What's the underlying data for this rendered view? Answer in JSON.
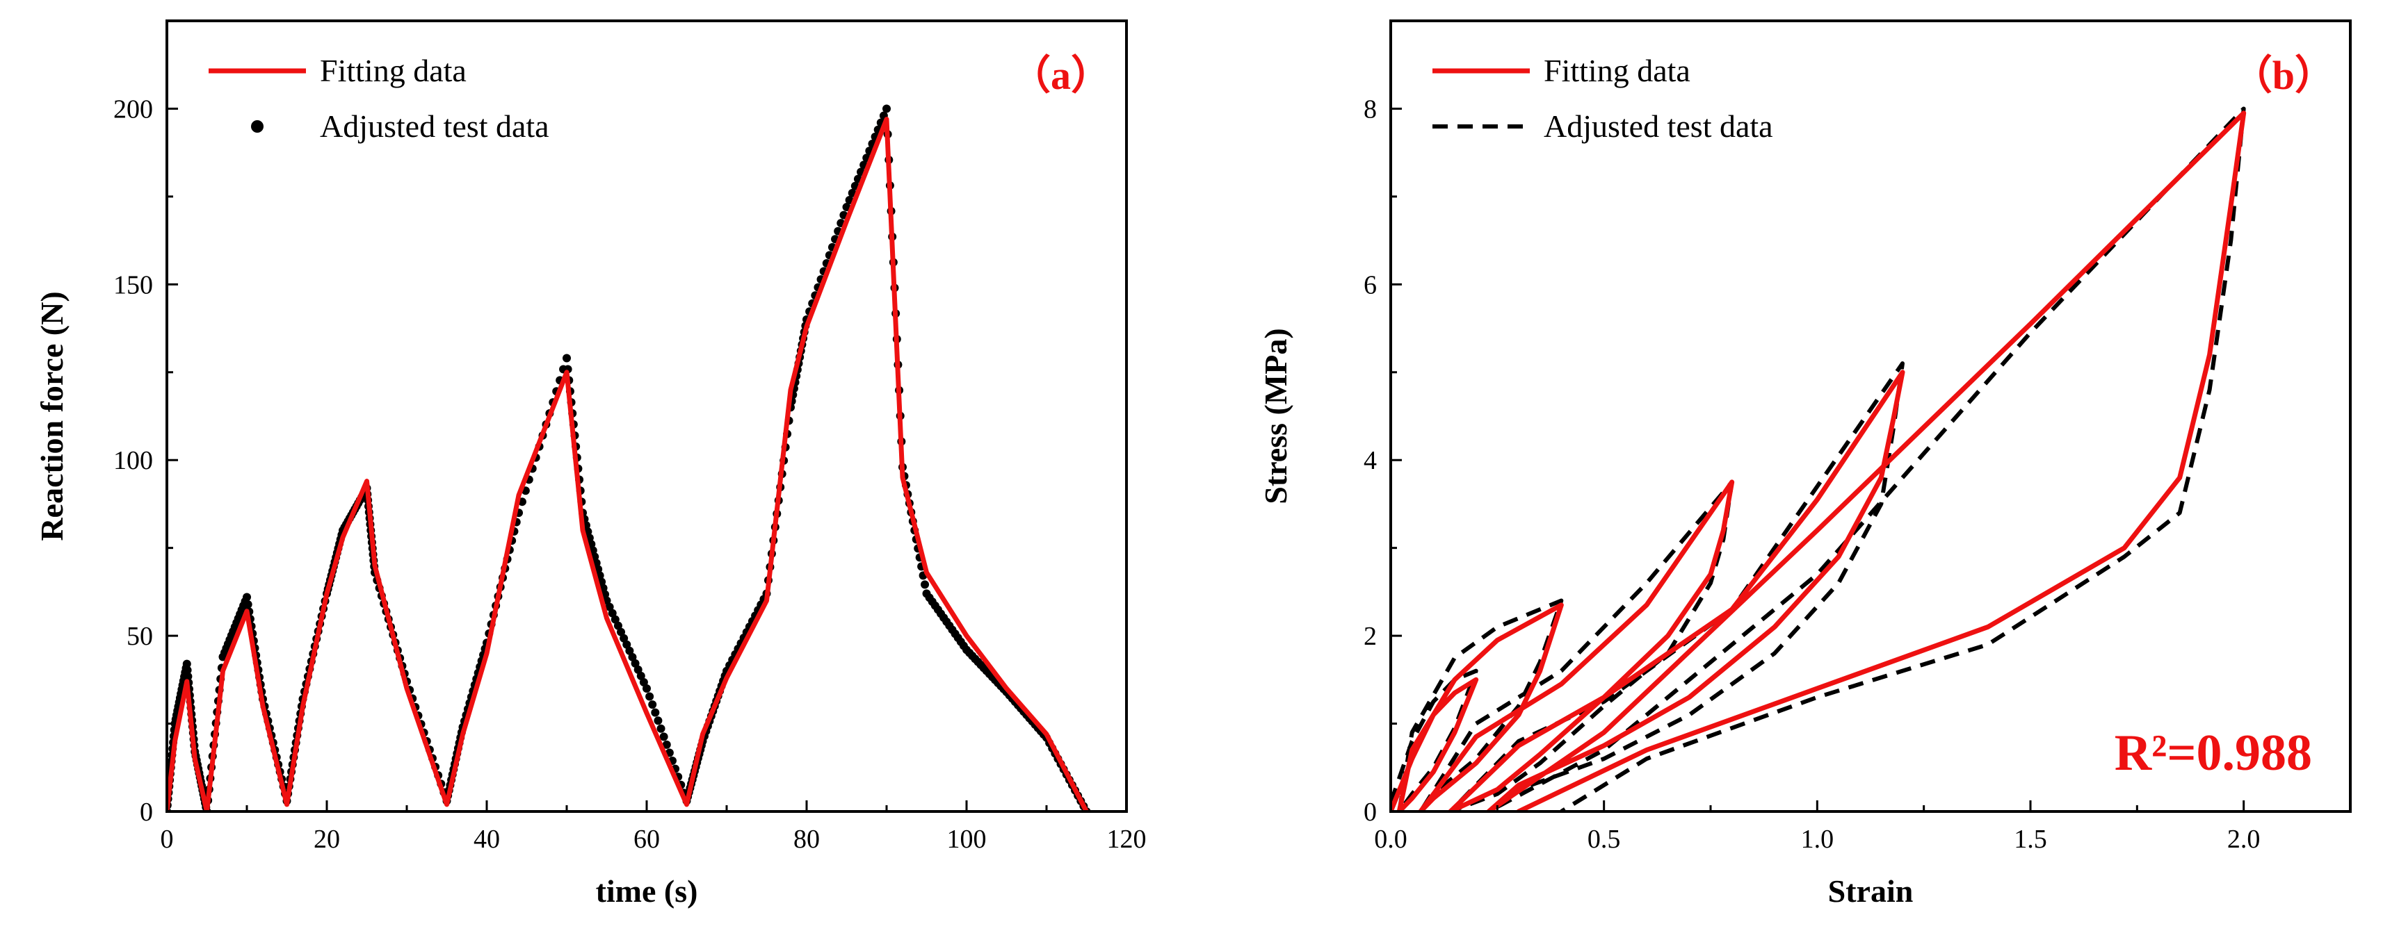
{
  "colors": {
    "fit": "#ee1111",
    "test": "#000000",
    "annotation": "#ee1111"
  },
  "chart_data": [
    {
      "type": "line",
      "panel_label": "（a）",
      "xlabel": "time (s)",
      "ylabel": "Reaction force (N)",
      "xlim": [
        0,
        120
      ],
      "ylim": [
        0,
        225
      ],
      "xticks": [
        0,
        20,
        40,
        60,
        80,
        100,
        120
      ],
      "yticks": [
        0,
        50,
        100,
        150,
        200
      ],
      "legend_position": "top-left",
      "series": [
        {
          "name": "Fitting data",
          "style": "solid",
          "color": "#ee1111",
          "x": [
            0,
            1,
            2.5,
            3.5,
            5,
            7,
            10,
            12,
            15,
            17,
            20,
            22,
            25,
            26,
            30,
            35,
            37,
            40,
            44,
            50,
            52,
            55,
            60,
            65,
            67,
            70,
            75,
            78,
            80,
            85,
            90,
            92,
            95,
            100,
            105,
            110,
            115
          ],
          "y": [
            0,
            20,
            37,
            15,
            0,
            40,
            57,
            30,
            2,
            30,
            62,
            78,
            94,
            70,
            35,
            2,
            22,
            45,
            90,
            125,
            80,
            55,
            28,
            2,
            22,
            38,
            60,
            120,
            138,
            168,
            197,
            95,
            68,
            50,
            35,
            22,
            0
          ]
        },
        {
          "name": "Adjusted test data",
          "style": "dots",
          "color": "#000000",
          "x": [
            0,
            1,
            2.5,
            3.5,
            5,
            7,
            10,
            12,
            15,
            17,
            20,
            22,
            25,
            26,
            30,
            35,
            37,
            40,
            44,
            50,
            52,
            55,
            60,
            65,
            67,
            70,
            75,
            78,
            80,
            85,
            90,
            92,
            95,
            100,
            105,
            110,
            115
          ],
          "y": [
            0,
            25,
            42,
            17,
            0,
            44,
            61,
            32,
            3,
            32,
            62,
            80,
            92,
            68,
            37,
            3,
            24,
            48,
            85,
            129,
            85,
            60,
            35,
            3,
            20,
            40,
            62,
            115,
            140,
            172,
            200,
            98,
            62,
            46,
            34,
            21,
            0
          ]
        }
      ]
    },
    {
      "type": "line",
      "panel_label": "（b）",
      "xlabel": "Strain",
      "ylabel": "Stress (MPa)",
      "xlim": [
        0,
        2.25
      ],
      "ylim": [
        0,
        9
      ],
      "xticks": [
        0.0,
        0.5,
        1.0,
        1.5,
        2.0
      ],
      "xtick_labels": [
        "0.0",
        "0.5",
        "1.0",
        "1.5",
        "2.0"
      ],
      "yticks": [
        0,
        2,
        4,
        6,
        8
      ],
      "legend_position": "top-left",
      "annotation": "R²=0.988",
      "series": [
        {
          "name": "Fitting data",
          "style": "solid",
          "color": "#ee1111",
          "x": [
            0,
            0.05,
            0.1,
            0.15,
            0.2,
            0.15,
            0.1,
            0.05,
            0.02,
            0.05,
            0.15,
            0.25,
            0.4,
            0.35,
            0.3,
            0.2,
            0.1,
            0.07,
            0.2,
            0.4,
            0.6,
            0.8,
            0.78,
            0.75,
            0.65,
            0.5,
            0.35,
            0.25,
            0.14,
            0.3,
            0.5,
            0.8,
            1.0,
            1.2,
            1.18,
            1.15,
            1.05,
            0.9,
            0.7,
            0.5,
            0.3,
            0.23,
            0.5,
            1.0,
            1.5,
            2.0,
            1.97,
            1.92,
            1.85,
            1.72,
            1.4,
            1.0,
            0.6,
            0.3
          ],
          "y": [
            0,
            0.6,
            1.1,
            1.35,
            1.5,
            0.9,
            0.45,
            0.15,
            0,
            0.7,
            1.5,
            1.95,
            2.35,
            1.6,
            1.1,
            0.55,
            0.15,
            0,
            0.85,
            1.45,
            2.35,
            3.75,
            3.2,
            2.7,
            2.0,
            1.3,
            0.65,
            0.25,
            0,
            0.75,
            1.3,
            2.3,
            3.55,
            5.0,
            4.5,
            3.8,
            2.9,
            2.1,
            1.3,
            0.75,
            0.3,
            0,
            0.9,
            3.2,
            5.55,
            7.95,
            6.9,
            5.2,
            3.8,
            3.0,
            2.1,
            1.4,
            0.7,
            0
          ]
        },
        {
          "name": "Adjusted test data",
          "style": "dashed",
          "color": "#000000",
          "x": [
            0,
            0.05,
            0.1,
            0.15,
            0.2,
            0.15,
            0.1,
            0.05,
            0.02,
            0.05,
            0.15,
            0.25,
            0.4,
            0.35,
            0.3,
            0.2,
            0.1,
            0.07,
            0.2,
            0.4,
            0.6,
            0.8,
            0.78,
            0.75,
            0.65,
            0.5,
            0.35,
            0.25,
            0.14,
            0.3,
            0.5,
            0.8,
            1.0,
            1.2,
            1.18,
            1.15,
            1.05,
            0.9,
            0.7,
            0.5,
            0.3,
            0.23,
            0.5,
            1.0,
            1.5,
            2.0,
            1.97,
            1.92,
            1.85,
            1.72,
            1.4,
            1.0,
            0.6,
            0.4
          ],
          "y": [
            0.1,
            0.8,
            1.25,
            1.5,
            1.6,
            0.95,
            0.5,
            0.2,
            0,
            0.9,
            1.75,
            2.1,
            2.4,
            1.7,
            1.2,
            0.6,
            0.2,
            0,
            1.0,
            1.6,
            2.6,
            3.75,
            3.1,
            2.6,
            1.8,
            1.2,
            0.55,
            0.2,
            0,
            0.8,
            1.25,
            2.3,
            3.7,
            5.1,
            4.4,
            3.5,
            2.6,
            1.8,
            1.1,
            0.6,
            0.25,
            0,
            0.7,
            2.7,
            5.45,
            8.0,
            6.5,
            4.8,
            3.4,
            2.9,
            1.9,
            1.3,
            0.6,
            0
          ]
        }
      ]
    }
  ]
}
